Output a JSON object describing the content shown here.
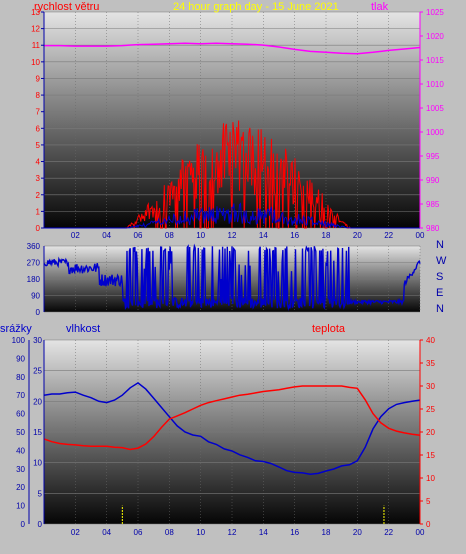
{
  "chart_data": [
    {
      "type": "line",
      "title": "24 hour graph day - 15 June 2021",
      "left_axis_title": "rychlost větru",
      "right_axis_title": "tlak",
      "x_tick_labels": [
        "02",
        "04",
        "06",
        "08",
        "10",
        "12",
        "14",
        "16",
        "18",
        "20",
        "22",
        "00"
      ],
      "y_left_ticks": [
        "0",
        "1",
        "2",
        "3",
        "4",
        "5",
        "6",
        "7",
        "8",
        "9",
        "10",
        "11",
        "12",
        "13"
      ],
      "y_right_ticks": [
        "980",
        "985",
        "990",
        "995",
        "1000",
        "1005",
        "1010",
        "1015",
        "1020",
        "1025"
      ],
      "ylim_left": [
        0,
        13
      ],
      "ylim_right": [
        980,
        1025
      ],
      "colors": {
        "pressure": "#ff00ff",
        "wind_gust": "#ff0000",
        "wind_avg": "#0000cc"
      },
      "series": [
        {
          "key": "pressure",
          "axis": "right",
          "x": [
            0,
            1,
            2,
            3,
            4,
            5,
            6,
            7,
            8,
            9,
            10,
            11,
            12,
            13,
            14,
            15,
            16,
            17,
            18,
            19,
            20,
            21,
            22,
            23,
            24
          ],
          "values": [
            1018.0,
            1018.0,
            1017.9,
            1017.9,
            1017.9,
            1018.0,
            1018.2,
            1018.3,
            1018.4,
            1018.5,
            1018.4,
            1018.5,
            1018.4,
            1018.3,
            1018.1,
            1017.7,
            1017.2,
            1016.8,
            1016.6,
            1016.4,
            1016.3,
            1016.6,
            1017.0,
            1017.3,
            1017.6
          ]
        }
      ]
    },
    {
      "type": "line",
      "left_ticks": [
        "0",
        "90",
        "180",
        "270",
        "360"
      ],
      "right_labels": [
        "N",
        "W",
        "S",
        "E",
        "N"
      ],
      "ylim": [
        0,
        360
      ],
      "colors": {
        "direction": "#0000cc"
      }
    },
    {
      "type": "line",
      "rain_axis_title": "srážky",
      "humidity_axis_title": "vlhkost",
      "temperature_axis_title": "teplota",
      "x_tick_labels": [
        "02",
        "04",
        "06",
        "08",
        "10",
        "12",
        "14",
        "16",
        "18",
        "20",
        "22",
        "00"
      ],
      "rain_ticks": [
        "0",
        "10",
        "20",
        "30",
        "40",
        "50",
        "60",
        "70",
        "80",
        "90",
        "100"
      ],
      "humidity_ticks": [
        "0",
        "5",
        "10",
        "15",
        "20",
        "25",
        "30"
      ],
      "temperature_ticks": [
        "0",
        "5",
        "10",
        "15",
        "20",
        "25",
        "30",
        "35",
        "40"
      ],
      "ylim_rain": [
        0,
        100
      ],
      "ylim_humidity": [
        0,
        30
      ],
      "ylim_temperature": [
        0,
        40
      ],
      "colors": {
        "humidity": "#0000cc",
        "temperature": "#ff0000",
        "rain": "#ffff00"
      },
      "series": [
        {
          "key": "humidity",
          "axis": "humidity",
          "x": [
            0,
            0.5,
            1,
            1.5,
            2,
            2.5,
            3,
            3.5,
            4,
            4.5,
            5,
            5.5,
            6,
            6.5,
            7,
            7.5,
            8,
            8.5,
            9,
            9.5,
            10,
            10.5,
            11,
            11.5,
            12,
            12.5,
            13,
            13.5,
            14,
            14.5,
            15,
            15.5,
            16,
            16.5,
            17,
            17.5,
            18,
            18.5,
            19,
            19.5,
            20,
            20.5,
            21,
            21.5,
            22,
            22.5,
            23,
            23.5,
            24
          ],
          "values": [
            21.0,
            21.2,
            21.2,
            21.4,
            21.5,
            21.0,
            20.6,
            20.0,
            19.8,
            20.2,
            21.0,
            22.2,
            23.0,
            22.0,
            20.5,
            19.0,
            17.5,
            16.0,
            15.0,
            14.5,
            14.0,
            13.5,
            13.0,
            12.5,
            11.8,
            11.2,
            10.8,
            10.4,
            10.0,
            9.6,
            9.0,
            8.5,
            8.3,
            8.2,
            8.1,
            8.3,
            8.6,
            9.0,
            9.4,
            9.8,
            10.3,
            12.5,
            15.5,
            17.5,
            18.8,
            19.5,
            19.8,
            20.0,
            20.2
          ]
        },
        {
          "key": "temperature",
          "axis": "temperature",
          "x": [
            0,
            0.5,
            1,
            1.5,
            2,
            2.5,
            3,
            3.5,
            4,
            4.5,
            5,
            5.5,
            6,
            6.5,
            7,
            7.5,
            8,
            8.5,
            9,
            9.5,
            10,
            10.5,
            11,
            11.5,
            12,
            12.5,
            13,
            13.5,
            14,
            14.5,
            15,
            15.5,
            16,
            16.5,
            17,
            17.5,
            18,
            18.5,
            19,
            19.5,
            20,
            20.5,
            21,
            21.5,
            22,
            22.5,
            23,
            23.5,
            24
          ],
          "values": [
            18.5,
            17.9,
            17.5,
            17.3,
            17.2,
            17.0,
            16.9,
            16.9,
            16.9,
            16.7,
            16.6,
            16.2,
            16.5,
            17.4,
            19.0,
            21.0,
            22.8,
            23.5,
            24.2,
            25.0,
            25.8,
            26.4,
            26.8,
            27.2,
            27.6,
            28.0,
            28.2,
            28.5,
            28.8,
            29.0,
            29.2,
            29.5,
            29.8,
            30.0,
            30.0,
            30.0,
            30.0,
            30.0,
            30.0,
            29.7,
            29.5,
            27.0,
            24.0,
            22.0,
            20.8,
            20.2,
            19.8,
            19.5,
            19.3
          ]
        },
        {
          "key": "rain",
          "axis": "rain",
          "x": [
            5,
            21.7
          ],
          "values": [
            10,
            10
          ]
        }
      ]
    }
  ]
}
